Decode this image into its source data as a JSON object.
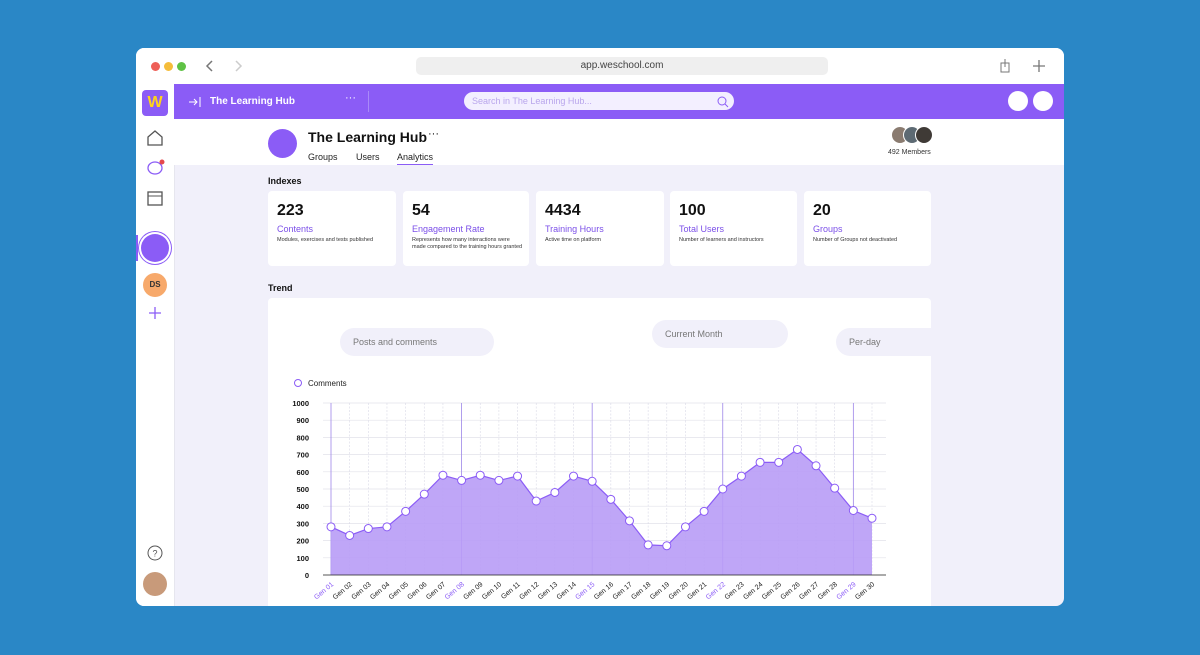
{
  "browser": {
    "url": "app.weschool.com"
  },
  "topbar": {
    "space_name": "The Learning Hub",
    "search_placeholder": "Search in The Learning Hub..."
  },
  "sidebar": {
    "logo": "W",
    "avatar_initials": "DS"
  },
  "header": {
    "title": "The Learning Hub",
    "tabs": [
      "Groups",
      "Users",
      "Analytics"
    ],
    "active_tab": 2,
    "members": "492 Members"
  },
  "indexes": {
    "title": "Indexes",
    "cards": [
      {
        "value": 223,
        "label": "Contents",
        "description": "Modules, exercises and tests published"
      },
      {
        "value": 54,
        "label": "Engagement Rate",
        "description": "Represents how many interactions were made compared to the training hours granted"
      },
      {
        "value": 4434,
        "label": "Training Hours",
        "description": "Active time on platform"
      },
      {
        "value": 100,
        "label": "Total Users",
        "description": "Number of learners and instructors"
      },
      {
        "value": 20,
        "label": "Groups",
        "description": "Number of Groups not deactivated"
      }
    ]
  },
  "trend": {
    "title": "Trend",
    "filters": [
      "Posts and comments",
      "Current Month",
      "Per-day"
    ]
  },
  "chart_data": {
    "type": "area",
    "categories": [
      "Gen 01",
      "Gen 02",
      "Gen 03",
      "Gen 04",
      "Gen 05",
      "Gen 06",
      "Gen 07",
      "Gen 08",
      "Gen 09",
      "Gen 10",
      "Gen 11",
      "Gen 12",
      "Gen 13",
      "Gen 14",
      "Gen 15",
      "Gen 16",
      "Gen 17",
      "Gen 18",
      "Gen 19",
      "Gen 20",
      "Gen 21",
      "Gen 22",
      "Gen 23",
      "Gen 24",
      "Gen 25",
      "Gen 26",
      "Gen 27",
      "Gen 28",
      "Gen 29",
      "Gen 30"
    ],
    "highlighted_categories": [
      0,
      7,
      14,
      21,
      28
    ],
    "series": [
      {
        "name": "Comments",
        "color": "#8b5cf6",
        "values": [
          280,
          230,
          270,
          280,
          370,
          470,
          580,
          550,
          580,
          550,
          575,
          430,
          480,
          575,
          545,
          440,
          315,
          175,
          170,
          280,
          370,
          500,
          575,
          655,
          655,
          730,
          635,
          505,
          375,
          330
        ]
      }
    ],
    "ylim": [
      0,
      1000
    ],
    "yticks": [
      0,
      100,
      200,
      300,
      400,
      500,
      600,
      700,
      800,
      900,
      1000
    ],
    "grid": true,
    "legend": "top-left"
  }
}
